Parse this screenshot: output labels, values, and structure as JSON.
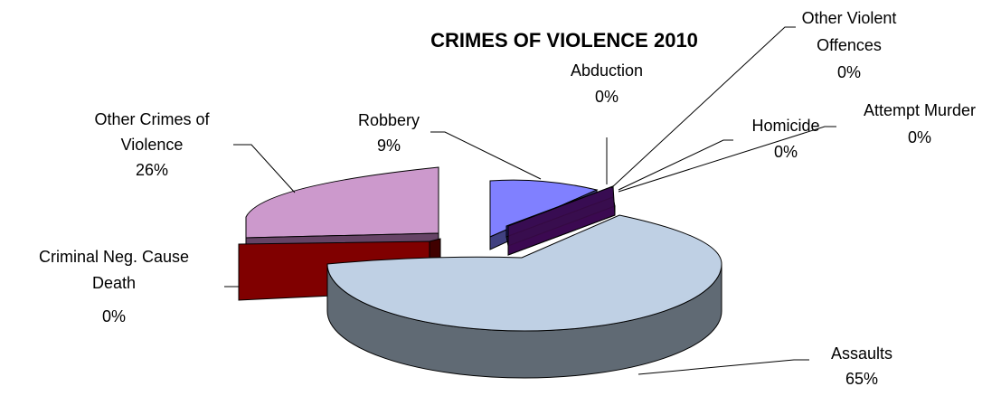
{
  "chart_data": {
    "type": "pie",
    "style": "3d-exploded",
    "title": "CRIMES OF VIOLENCE 2010",
    "slices": [
      {
        "label": "Assaults",
        "percent_label": "65%",
        "value": 65,
        "color": "#bfd0e4"
      },
      {
        "label": "Other Crimes of Violence",
        "percent_label": "26%",
        "value": 26,
        "color": "#cc99cc"
      },
      {
        "label": "Robbery",
        "percent_label": "9%",
        "value": 9,
        "color": "#8080ff"
      },
      {
        "label": "Abduction",
        "percent_label": "0%",
        "value": 0,
        "color": "#1f1a6b"
      },
      {
        "label": "Other Violent Offences",
        "percent_label": "0%",
        "value": 0,
        "color": "#1f1f4f"
      },
      {
        "label": "Homicide",
        "percent_label": "0%",
        "value": 0,
        "color": "#330066"
      },
      {
        "label": "Attempt Murder",
        "percent_label": "0%",
        "value": 0,
        "color": "#3d0a4d"
      },
      {
        "label": "Criminal Neg. Cause Death",
        "percent_label": "0%",
        "value": 0,
        "color": "#800000"
      }
    ]
  }
}
